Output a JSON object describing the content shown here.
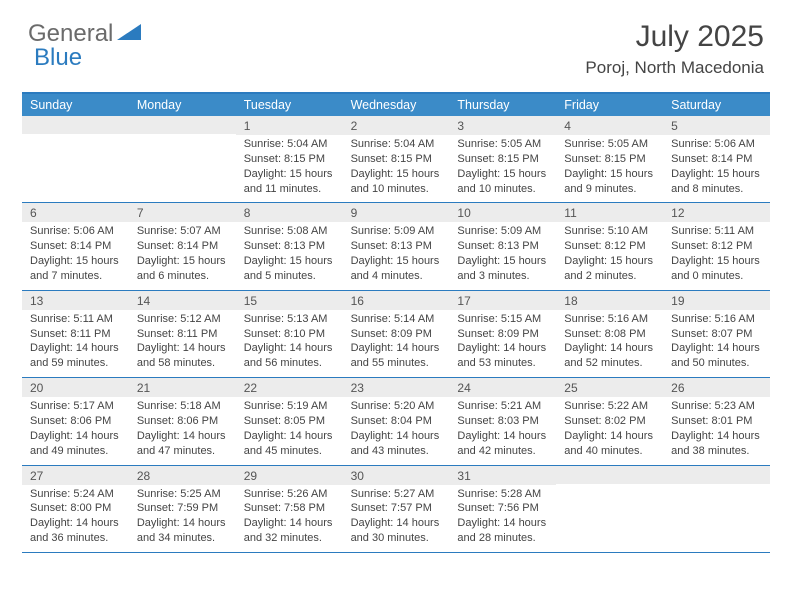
{
  "brand": {
    "part1": "General",
    "part2": "Blue"
  },
  "title": "July 2025",
  "location": "Poroj, North Macedonia",
  "header_bg": "#3b8bc8",
  "border_color": "#2b7bbf",
  "daynum_bg": "#ececec",
  "day_names": [
    "Sunday",
    "Monday",
    "Tuesday",
    "Wednesday",
    "Thursday",
    "Friday",
    "Saturday"
  ],
  "weeks": [
    [
      null,
      null,
      {
        "n": "1",
        "sr": "5:04 AM",
        "ss": "8:15 PM",
        "dl": "15 hours and 11 minutes."
      },
      {
        "n": "2",
        "sr": "5:04 AM",
        "ss": "8:15 PM",
        "dl": "15 hours and 10 minutes."
      },
      {
        "n": "3",
        "sr": "5:05 AM",
        "ss": "8:15 PM",
        "dl": "15 hours and 10 minutes."
      },
      {
        "n": "4",
        "sr": "5:05 AM",
        "ss": "8:15 PM",
        "dl": "15 hours and 9 minutes."
      },
      {
        "n": "5",
        "sr": "5:06 AM",
        "ss": "8:14 PM",
        "dl": "15 hours and 8 minutes."
      }
    ],
    [
      {
        "n": "6",
        "sr": "5:06 AM",
        "ss": "8:14 PM",
        "dl": "15 hours and 7 minutes."
      },
      {
        "n": "7",
        "sr": "5:07 AM",
        "ss": "8:14 PM",
        "dl": "15 hours and 6 minutes."
      },
      {
        "n": "8",
        "sr": "5:08 AM",
        "ss": "8:13 PM",
        "dl": "15 hours and 5 minutes."
      },
      {
        "n": "9",
        "sr": "5:09 AM",
        "ss": "8:13 PM",
        "dl": "15 hours and 4 minutes."
      },
      {
        "n": "10",
        "sr": "5:09 AM",
        "ss": "8:13 PM",
        "dl": "15 hours and 3 minutes."
      },
      {
        "n": "11",
        "sr": "5:10 AM",
        "ss": "8:12 PM",
        "dl": "15 hours and 2 minutes."
      },
      {
        "n": "12",
        "sr": "5:11 AM",
        "ss": "8:12 PM",
        "dl": "15 hours and 0 minutes."
      }
    ],
    [
      {
        "n": "13",
        "sr": "5:11 AM",
        "ss": "8:11 PM",
        "dl": "14 hours and 59 minutes."
      },
      {
        "n": "14",
        "sr": "5:12 AM",
        "ss": "8:11 PM",
        "dl": "14 hours and 58 minutes."
      },
      {
        "n": "15",
        "sr": "5:13 AM",
        "ss": "8:10 PM",
        "dl": "14 hours and 56 minutes."
      },
      {
        "n": "16",
        "sr": "5:14 AM",
        "ss": "8:09 PM",
        "dl": "14 hours and 55 minutes."
      },
      {
        "n": "17",
        "sr": "5:15 AM",
        "ss": "8:09 PM",
        "dl": "14 hours and 53 minutes."
      },
      {
        "n": "18",
        "sr": "5:16 AM",
        "ss": "8:08 PM",
        "dl": "14 hours and 52 minutes."
      },
      {
        "n": "19",
        "sr": "5:16 AM",
        "ss": "8:07 PM",
        "dl": "14 hours and 50 minutes."
      }
    ],
    [
      {
        "n": "20",
        "sr": "5:17 AM",
        "ss": "8:06 PM",
        "dl": "14 hours and 49 minutes."
      },
      {
        "n": "21",
        "sr": "5:18 AM",
        "ss": "8:06 PM",
        "dl": "14 hours and 47 minutes."
      },
      {
        "n": "22",
        "sr": "5:19 AM",
        "ss": "8:05 PM",
        "dl": "14 hours and 45 minutes."
      },
      {
        "n": "23",
        "sr": "5:20 AM",
        "ss": "8:04 PM",
        "dl": "14 hours and 43 minutes."
      },
      {
        "n": "24",
        "sr": "5:21 AM",
        "ss": "8:03 PM",
        "dl": "14 hours and 42 minutes."
      },
      {
        "n": "25",
        "sr": "5:22 AM",
        "ss": "8:02 PM",
        "dl": "14 hours and 40 minutes."
      },
      {
        "n": "26",
        "sr": "5:23 AM",
        "ss": "8:01 PM",
        "dl": "14 hours and 38 minutes."
      }
    ],
    [
      {
        "n": "27",
        "sr": "5:24 AM",
        "ss": "8:00 PM",
        "dl": "14 hours and 36 minutes."
      },
      {
        "n": "28",
        "sr": "5:25 AM",
        "ss": "7:59 PM",
        "dl": "14 hours and 34 minutes."
      },
      {
        "n": "29",
        "sr": "5:26 AM",
        "ss": "7:58 PM",
        "dl": "14 hours and 32 minutes."
      },
      {
        "n": "30",
        "sr": "5:27 AM",
        "ss": "7:57 PM",
        "dl": "14 hours and 30 minutes."
      },
      {
        "n": "31",
        "sr": "5:28 AM",
        "ss": "7:56 PM",
        "dl": "14 hours and 28 minutes."
      },
      null,
      null
    ]
  ],
  "labels": {
    "sunrise": "Sunrise:",
    "sunset": "Sunset:",
    "daylight": "Daylight:"
  }
}
